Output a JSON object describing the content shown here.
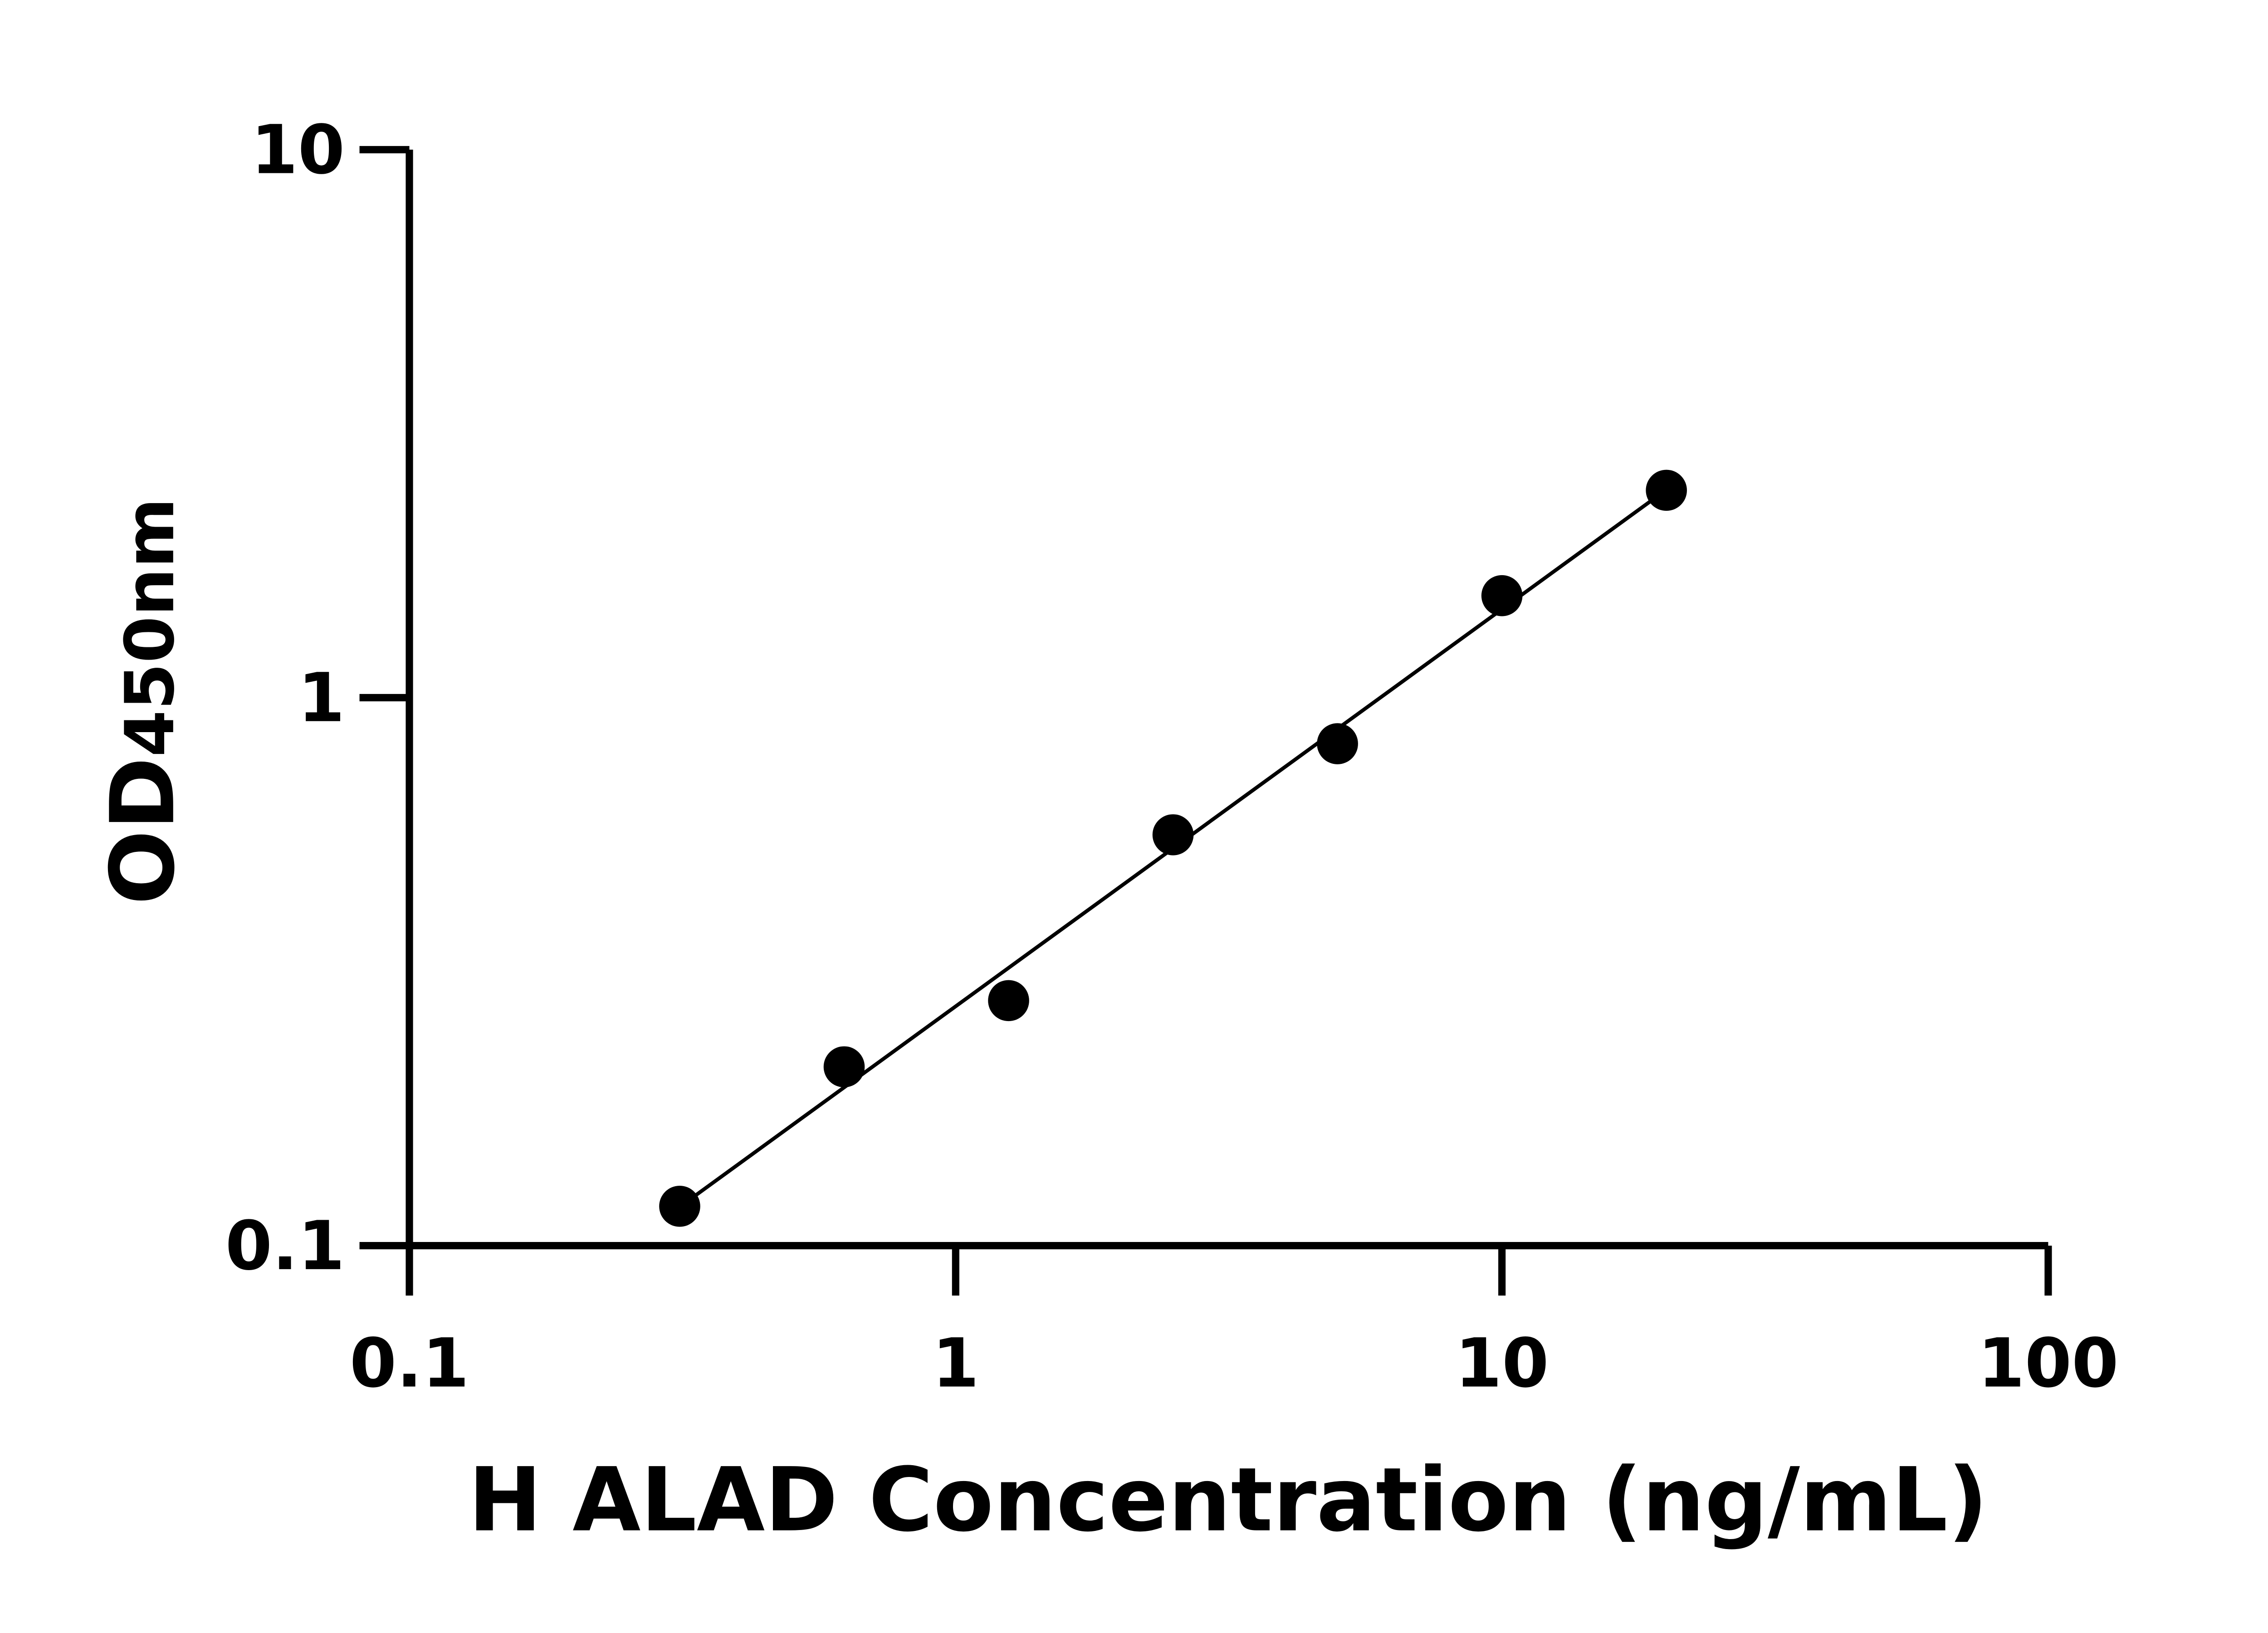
{
  "chart_data": {
    "type": "scatter",
    "title": "",
    "xlabel": "H ALAD Concentration (ng/mL)",
    "ylabel": {
      "main": "OD",
      "sub": "450nm"
    },
    "xscale": "log",
    "yscale": "log",
    "xlim": [
      0.1,
      100
    ],
    "ylim": [
      0.1,
      10
    ],
    "xticks": [
      "0.1",
      "1",
      "10",
      "100"
    ],
    "yticks": [
      "0.1",
      "1",
      "10"
    ],
    "grid": false,
    "fit_line": "linear fit on log-log axes",
    "series": [
      {
        "x": [
          0.3125,
          0.625,
          1.25,
          2.5,
          5,
          10,
          20
        ],
        "y": [
          0.118,
          0.212,
          0.28,
          0.562,
          0.824,
          1.535,
          2.39
        ]
      }
    ],
    "colors": {
      "marker": "#000000",
      "line": "#000000"
    }
  }
}
